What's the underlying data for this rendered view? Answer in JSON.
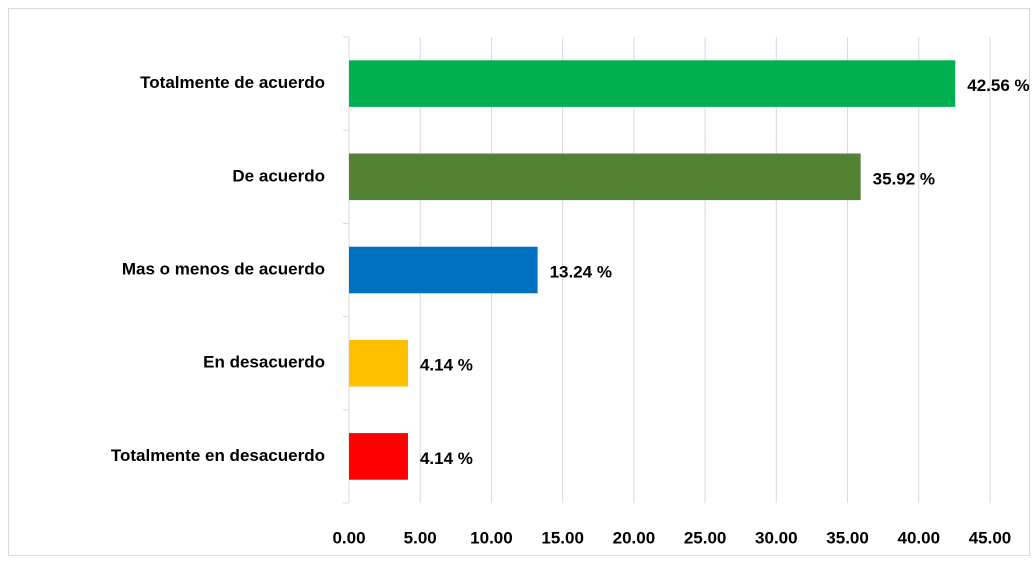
{
  "chart_data": {
    "type": "barh",
    "categories": [
      "Totalmente de acuerdo",
      "De acuerdo",
      "Mas o menos de acuerdo",
      "En desacuerdo",
      "Totalmente en desacuerdo"
    ],
    "values": [
      42.56,
      35.92,
      13.24,
      4.14,
      4.14
    ],
    "value_labels": [
      "42.56 %",
      "35.92 %",
      "13.24 %",
      "4.14 %",
      "4.14 %"
    ],
    "colors": [
      "#00b050",
      "#548235",
      "#0070c0",
      "#ffc000",
      "#ff0000"
    ],
    "xlim": [
      0,
      45
    ],
    "xticks": [
      {
        "value": 0,
        "label": "0.00"
      },
      {
        "value": 5,
        "label": "5.00"
      },
      {
        "value": 10,
        "label": "10.00"
      },
      {
        "value": 15,
        "label": "15.00"
      },
      {
        "value": 20,
        "label": "20.00"
      },
      {
        "value": 25,
        "label": "25.00"
      },
      {
        "value": 30,
        "label": "30.00"
      },
      {
        "value": 35,
        "label": "35.00"
      },
      {
        "value": 40,
        "label": "40.00"
      },
      {
        "value": 45,
        "label": "45.00"
      }
    ],
    "grid": true
  }
}
